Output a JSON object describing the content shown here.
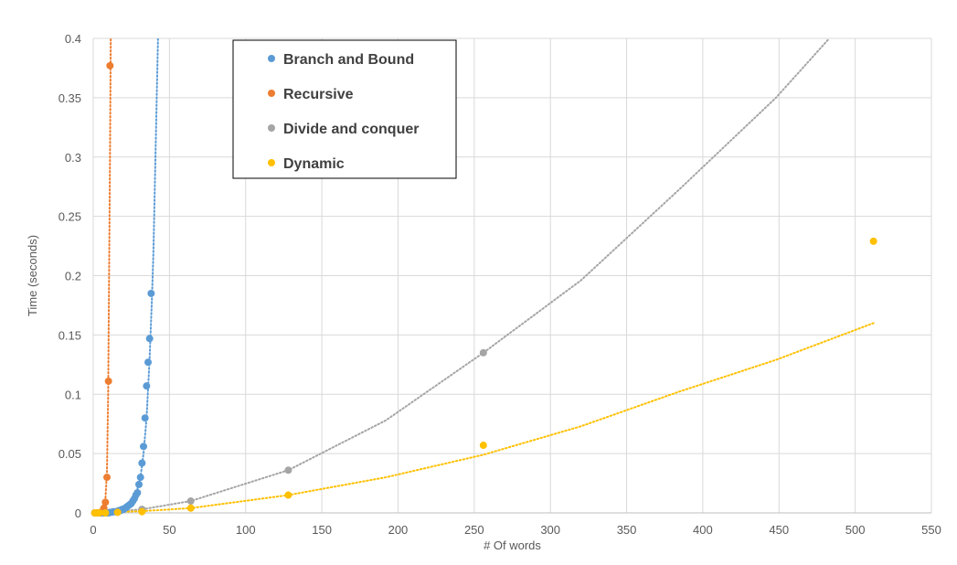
{
  "chart_data": {
    "type": "scatter",
    "xlabel": "# Of words",
    "ylabel": "Time (seconds)",
    "xlim": [
      0,
      550
    ],
    "ylim": [
      0,
      0.4
    ],
    "x_ticks": [
      "0",
      "50",
      "100",
      "150",
      "200",
      "250",
      "300",
      "350",
      "400",
      "450",
      "500",
      "550"
    ],
    "y_ticks": [
      "0",
      "0.05",
      "0.1",
      "0.15",
      "0.2",
      "0.25",
      "0.3",
      "0.35",
      "0.4"
    ],
    "grid": true,
    "legend_position": "top-left",
    "trendline_style": "dotted",
    "series": [
      {
        "name": "Branch and Bound",
        "color": "#5B9BD5",
        "points": [
          [
            1,
            0
          ],
          [
            2,
            0
          ],
          [
            3,
            0
          ],
          [
            4,
            0
          ],
          [
            5,
            0
          ],
          [
            6,
            0
          ],
          [
            7,
            0
          ],
          [
            8,
            0
          ],
          [
            9,
            0
          ],
          [
            10,
            0
          ],
          [
            11,
            0.0005
          ],
          [
            12,
            0.0005
          ],
          [
            13,
            0.001
          ],
          [
            14,
            0.001
          ],
          [
            15,
            0.001
          ],
          [
            16,
            0.0015
          ],
          [
            17,
            0.002
          ],
          [
            18,
            0.002
          ],
          [
            19,
            0.003
          ],
          [
            20,
            0.003
          ],
          [
            21,
            0.004
          ],
          [
            22,
            0.005
          ],
          [
            23,
            0.006
          ],
          [
            24,
            0.007
          ],
          [
            25,
            0.008
          ],
          [
            26,
            0.01
          ],
          [
            27,
            0.012
          ],
          [
            28,
            0.015
          ],
          [
            29,
            0.017
          ],
          [
            30,
            0.024
          ],
          [
            31,
            0.03
          ],
          [
            32,
            0.042
          ],
          [
            33,
            0.056
          ],
          [
            34,
            0.08
          ],
          [
            35,
            0.107
          ],
          [
            36,
            0.127
          ],
          [
            37,
            0.147
          ],
          [
            38,
            0.185
          ]
        ],
        "trend_points": [
          [
            1,
            0
          ],
          [
            10,
            0.0002
          ],
          [
            15,
            0.0008
          ],
          [
            20,
            0.003
          ],
          [
            25,
            0.008
          ],
          [
            28,
            0.015
          ],
          [
            31,
            0.03
          ],
          [
            33,
            0.05
          ],
          [
            35,
            0.08
          ],
          [
            37,
            0.13
          ],
          [
            38.5,
            0.18
          ],
          [
            39.5,
            0.22
          ],
          [
            40.5,
            0.28
          ],
          [
            41.5,
            0.34
          ],
          [
            42.5,
            0.4
          ]
        ]
      },
      {
        "name": "Recursive",
        "color": "#ED7D31",
        "points": [
          [
            1,
            0
          ],
          [
            2,
            0
          ],
          [
            3,
            0
          ],
          [
            4,
            0
          ],
          [
            5,
            0.0005
          ],
          [
            6,
            0.0015
          ],
          [
            7,
            0.004
          ],
          [
            8,
            0.009
          ],
          [
            9,
            0.03
          ],
          [
            10,
            0.111
          ],
          [
            11,
            0.377
          ]
        ],
        "trend_points": [
          [
            1,
            0
          ],
          [
            4,
            0
          ],
          [
            6,
            0.0015
          ],
          [
            7,
            0.004
          ],
          [
            8,
            0.012
          ],
          [
            9,
            0.035
          ],
          [
            9.8,
            0.1
          ],
          [
            10.4,
            0.2
          ],
          [
            11,
            0.3
          ],
          [
            11.5,
            0.4
          ]
        ]
      },
      {
        "name": "Divide and conquer",
        "color": "#A5A5A5",
        "points": [
          [
            1,
            0
          ],
          [
            2,
            0
          ],
          [
            4,
            0
          ],
          [
            8,
            0
          ],
          [
            16,
            0.0005
          ],
          [
            32,
            0.003
          ],
          [
            64,
            0.01
          ],
          [
            128,
            0.036
          ],
          [
            256,
            0.135
          ]
        ],
        "trend_points": [
          [
            1,
            0
          ],
          [
            32,
            0.003
          ],
          [
            64,
            0.01
          ],
          [
            128,
            0.036
          ],
          [
            192,
            0.078
          ],
          [
            256,
            0.135
          ],
          [
            320,
            0.196
          ],
          [
            384,
            0.272
          ],
          [
            448,
            0.35
          ],
          [
            483,
            0.4
          ]
        ]
      },
      {
        "name": "Dynamic",
        "color": "#FFC000",
        "points": [
          [
            1,
            0
          ],
          [
            2,
            0
          ],
          [
            4,
            0
          ],
          [
            8,
            0
          ],
          [
            16,
            0.0005
          ],
          [
            32,
            0.001
          ],
          [
            64,
            0.004
          ],
          [
            128,
            0.015
          ],
          [
            256,
            0.057
          ],
          [
            512,
            0.229
          ]
        ],
        "trend_points": [
          [
            1,
            0
          ],
          [
            32,
            0.0015
          ],
          [
            64,
            0.004
          ],
          [
            128,
            0.015
          ],
          [
            192,
            0.03
          ],
          [
            256,
            0.049
          ],
          [
            320,
            0.073
          ],
          [
            384,
            0.102
          ],
          [
            448,
            0.129
          ],
          [
            512,
            0.16
          ]
        ]
      }
    ]
  }
}
